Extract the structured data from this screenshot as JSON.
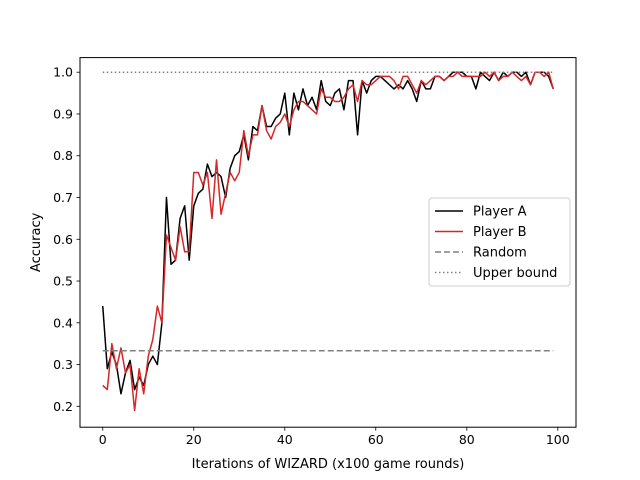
{
  "chart_data": {
    "type": "line",
    "title": "",
    "xlabel": "Iterations of WIZARD (x100 game rounds)",
    "ylabel": "Accuracy",
    "xlim": [
      -5,
      104
    ],
    "ylim": [
      0.15,
      1.035
    ],
    "xticks": [
      0,
      20,
      40,
      60,
      80,
      100
    ],
    "yticks": [
      0.2,
      0.3,
      0.4,
      0.5,
      0.6,
      0.7,
      0.8,
      0.9,
      1.0
    ],
    "grid": false,
    "legend_position": "center-right",
    "series": [
      {
        "name": "Player A",
        "color": "#000000",
        "style": "solid",
        "x": [
          0,
          1,
          2,
          3,
          4,
          5,
          6,
          7,
          8,
          9,
          10,
          11,
          12,
          13,
          14,
          15,
          16,
          17,
          18,
          19,
          20,
          21,
          22,
          23,
          24,
          25,
          26,
          27,
          28,
          29,
          30,
          31,
          32,
          33,
          34,
          35,
          36,
          37,
          38,
          39,
          40,
          41,
          42,
          43,
          44,
          45,
          46,
          47,
          48,
          49,
          50,
          51,
          52,
          53,
          54,
          55,
          56,
          57,
          58,
          59,
          60,
          61,
          62,
          63,
          64,
          65,
          66,
          67,
          68,
          69,
          70,
          71,
          72,
          73,
          74,
          75,
          76,
          77,
          78,
          79,
          80,
          81,
          82,
          83,
          84,
          85,
          86,
          87,
          88,
          89,
          90,
          91,
          92,
          93,
          94,
          95,
          96,
          97,
          98,
          99
        ],
        "y": [
          0.44,
          0.29,
          0.33,
          0.3,
          0.23,
          0.28,
          0.31,
          0.24,
          0.27,
          0.25,
          0.3,
          0.32,
          0.3,
          0.4,
          0.7,
          0.54,
          0.55,
          0.65,
          0.68,
          0.55,
          0.68,
          0.71,
          0.72,
          0.78,
          0.75,
          0.76,
          0.75,
          0.7,
          0.77,
          0.8,
          0.81,
          0.85,
          0.79,
          0.87,
          0.86,
          0.92,
          0.87,
          0.87,
          0.89,
          0.9,
          0.95,
          0.85,
          0.95,
          0.91,
          0.96,
          0.92,
          0.94,
          0.91,
          0.98,
          0.93,
          0.92,
          0.95,
          0.96,
          0.91,
          0.98,
          0.98,
          0.85,
          0.98,
          0.95,
          0.98,
          0.99,
          0.99,
          0.98,
          0.97,
          0.96,
          0.97,
          0.96,
          0.98,
          0.96,
          0.93,
          0.98,
          0.96,
          0.96,
          0.99,
          0.99,
          0.98,
          0.99,
          1.0,
          1.0,
          1.0,
          0.99,
          0.99,
          0.96,
          1.0,
          0.99,
          0.98,
          1.0,
          0.98,
          1.0,
          0.99,
          1.0,
          1.0,
          0.99,
          1.0,
          0.97,
          1.0,
          1.0,
          1.0,
          0.99,
          0.96
        ]
      },
      {
        "name": "Player B",
        "color": "#d62728",
        "style": "solid",
        "x": [
          0,
          1,
          2,
          3,
          4,
          5,
          6,
          7,
          8,
          9,
          10,
          11,
          12,
          13,
          14,
          15,
          16,
          17,
          18,
          19,
          20,
          21,
          22,
          23,
          24,
          25,
          26,
          27,
          28,
          29,
          30,
          31,
          32,
          33,
          34,
          35,
          36,
          37,
          38,
          39,
          40,
          41,
          42,
          43,
          44,
          45,
          46,
          47,
          48,
          49,
          50,
          51,
          52,
          53,
          54,
          55,
          56,
          57,
          58,
          59,
          60,
          61,
          62,
          63,
          64,
          65,
          66,
          67,
          68,
          69,
          70,
          71,
          72,
          73,
          74,
          75,
          76,
          77,
          78,
          79,
          80,
          81,
          82,
          83,
          84,
          85,
          86,
          87,
          88,
          89,
          90,
          91,
          92,
          93,
          94,
          95,
          96,
          97,
          98,
          99
        ],
        "y": [
          0.25,
          0.24,
          0.35,
          0.29,
          0.34,
          0.28,
          0.3,
          0.19,
          0.29,
          0.23,
          0.32,
          0.36,
          0.44,
          0.4,
          0.61,
          0.58,
          0.55,
          0.63,
          0.57,
          0.57,
          0.76,
          0.76,
          0.73,
          0.76,
          0.65,
          0.79,
          0.66,
          0.71,
          0.76,
          0.74,
          0.76,
          0.86,
          0.8,
          0.85,
          0.85,
          0.92,
          0.86,
          0.84,
          0.87,
          0.88,
          0.9,
          0.87,
          0.91,
          0.93,
          0.93,
          0.92,
          0.91,
          0.9,
          0.96,
          0.94,
          0.94,
          0.93,
          0.93,
          0.94,
          0.96,
          0.97,
          0.93,
          0.98,
          0.97,
          0.97,
          0.98,
          0.99,
          0.99,
          0.99,
          0.98,
          0.96,
          0.99,
          0.99,
          0.97,
          0.95,
          0.98,
          0.97,
          0.98,
          0.99,
          0.99,
          0.98,
          0.99,
          0.99,
          1.0,
          0.99,
          0.99,
          0.99,
          0.99,
          0.99,
          1.0,
          0.99,
          1.0,
          0.98,
          0.99,
          0.99,
          1.0,
          0.99,
          0.98,
          0.99,
          0.97,
          1.0,
          1.0,
          0.99,
          1.0,
          0.96
        ]
      },
      {
        "name": "Random",
        "color": "#808080",
        "style": "dashed",
        "x": [
          0,
          99
        ],
        "y": [
          0.333,
          0.333
        ]
      },
      {
        "name": "Upper bound",
        "color": "#808080",
        "style": "dotted",
        "x": [
          0,
          99
        ],
        "y": [
          1.0,
          1.0
        ]
      }
    ]
  }
}
